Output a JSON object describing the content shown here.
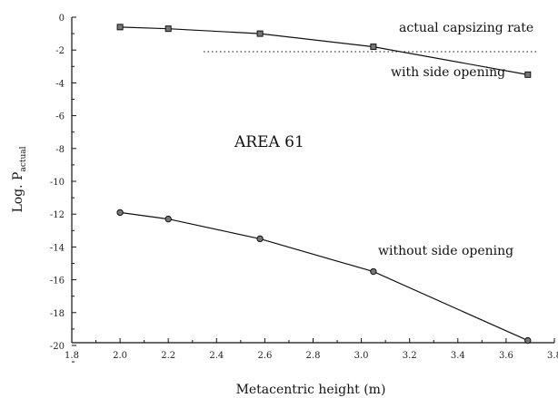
{
  "chart_data": {
    "type": "line",
    "xlabel": "Metacentric height (m)",
    "ylabel": "Log. P",
    "ylabel_subscript": "actual",
    "xlim": [
      1.8,
      3.8
    ],
    "ylim": [
      -21,
      0
    ],
    "xticks": [
      "1.8",
      "2.0",
      "2.2",
      "2.4",
      "2.6",
      "2.8",
      "3.0",
      "3.2",
      "3.4",
      "3.6",
      "3.8"
    ],
    "yticks": [
      "0",
      "-2",
      "-4",
      "-6",
      "-8",
      "-10",
      "-12",
      "-14",
      "-16",
      "-18",
      "-20"
    ],
    "series": [
      {
        "name": "with side opening",
        "x": [
          2.0,
          2.2,
          2.58,
          3.05,
          3.69
        ],
        "y": [
          -0.6,
          -0.7,
          -1.0,
          -1.8,
          -3.5
        ]
      },
      {
        "name": "without side opening",
        "x": [
          2.0,
          2.2,
          2.58,
          3.05,
          3.69
        ],
        "y": [
          -11.9,
          -12.3,
          -13.5,
          -15.5,
          -19.7
        ]
      }
    ],
    "reference_line": {
      "label": "actual capsizing rate",
      "y": -2.1
    },
    "annotation": "AREA 61",
    "grid": false
  }
}
